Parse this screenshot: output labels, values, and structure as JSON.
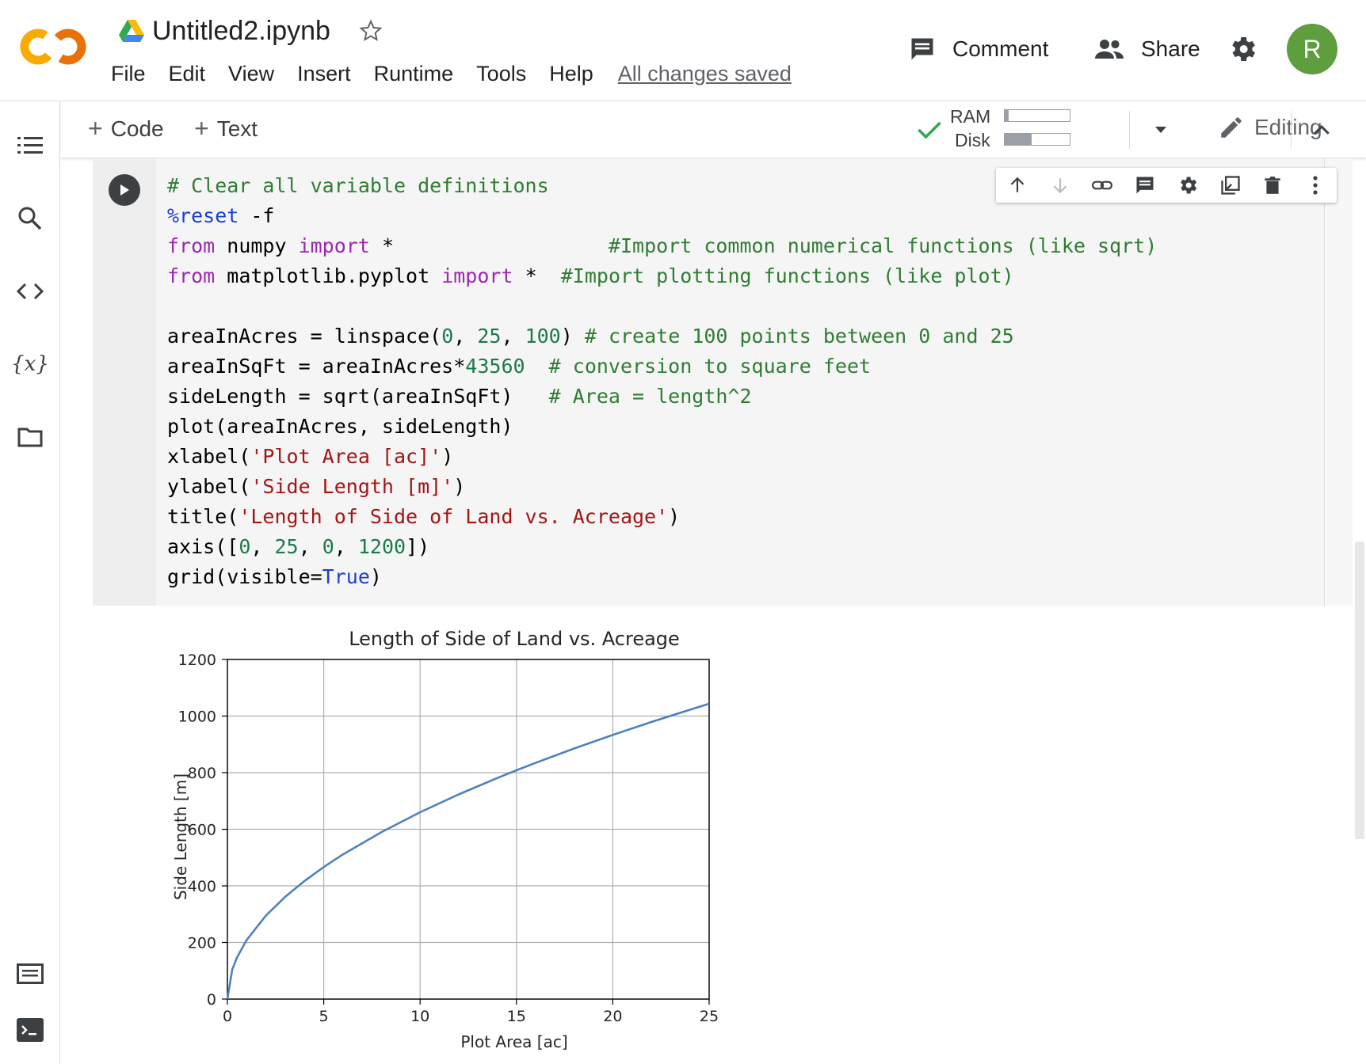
{
  "header": {
    "notebook_title": "Untitled2.ipynb",
    "menu": [
      "File",
      "Edit",
      "View",
      "Insert",
      "Runtime",
      "Tools",
      "Help"
    ],
    "save_status": "All changes saved",
    "comment_label": "Comment",
    "share_label": "Share",
    "avatar_initial": "R",
    "avatar_color": "#5e9e3e"
  },
  "left_rail": {
    "icons": [
      "table-of-contents-icon",
      "search-icon",
      "code-snippets-icon",
      "variables-icon",
      "files-icon",
      "command-palette-icon",
      "terminal-icon"
    ],
    "variables_glyph": "{x}"
  },
  "toolbar": {
    "add_code_label": "Code",
    "add_text_label": "Text",
    "ram_label": "RAM",
    "disk_label": "Disk",
    "ram_usage": 0.06,
    "disk_usage": 0.42,
    "editing_label": "Editing"
  },
  "cell": {
    "code_lines": [
      [
        {
          "t": "# Clear all variable definitions",
          "c": "cm"
        }
      ],
      [
        {
          "t": "%reset",
          "c": "mag"
        },
        {
          "t": " -f",
          "c": ""
        }
      ],
      [
        {
          "t": "from",
          "c": "kw"
        },
        {
          "t": " numpy ",
          "c": ""
        },
        {
          "t": "import",
          "c": "kw"
        },
        {
          "t": " *                  ",
          "c": ""
        },
        {
          "t": "#Import common numerical functions (like sqrt)",
          "c": "cm"
        }
      ],
      [
        {
          "t": "from",
          "c": "kw"
        },
        {
          "t": " matplotlib.pyplot ",
          "c": ""
        },
        {
          "t": "import",
          "c": "kw"
        },
        {
          "t": " *  ",
          "c": ""
        },
        {
          "t": "#Import plotting functions (like plot)",
          "c": "cm"
        }
      ],
      [
        {
          "t": "",
          "c": ""
        }
      ],
      [
        {
          "t": "areaInAcres = linspace(",
          "c": ""
        },
        {
          "t": "0",
          "c": "num"
        },
        {
          "t": ", ",
          "c": ""
        },
        {
          "t": "25",
          "c": "num"
        },
        {
          "t": ", ",
          "c": ""
        },
        {
          "t": "100",
          "c": "num"
        },
        {
          "t": ") ",
          "c": ""
        },
        {
          "t": "# create 100 points between 0 and 25",
          "c": "cm"
        }
      ],
      [
        {
          "t": "areaInSqFt = areaInAcres*",
          "c": ""
        },
        {
          "t": "43560",
          "c": "num"
        },
        {
          "t": "  ",
          "c": ""
        },
        {
          "t": "# conversion to square feet",
          "c": "cm"
        }
      ],
      [
        {
          "t": "sideLength = sqrt(areaInSqFt)   ",
          "c": ""
        },
        {
          "t": "# Area = length^2",
          "c": "cm"
        }
      ],
      [
        {
          "t": "plot(areaInAcres, sideLength)",
          "c": ""
        }
      ],
      [
        {
          "t": "xlabel(",
          "c": ""
        },
        {
          "t": "'Plot Area [ac]'",
          "c": "str"
        },
        {
          "t": ")",
          "c": ""
        }
      ],
      [
        {
          "t": "ylabel(",
          "c": ""
        },
        {
          "t": "'Side Length [m]'",
          "c": "str"
        },
        {
          "t": ")",
          "c": ""
        }
      ],
      [
        {
          "t": "title(",
          "c": ""
        },
        {
          "t": "'Length of Side of Land vs. Acreage'",
          "c": "str"
        },
        {
          "t": ")",
          "c": ""
        }
      ],
      [
        {
          "t": "axis([",
          "c": ""
        },
        {
          "t": "0",
          "c": "num"
        },
        {
          "t": ", ",
          "c": ""
        },
        {
          "t": "25",
          "c": "num"
        },
        {
          "t": ", ",
          "c": ""
        },
        {
          "t": "0",
          "c": "num"
        },
        {
          "t": ", ",
          "c": ""
        },
        {
          "t": "1200",
          "c": "num"
        },
        {
          "t": "])",
          "c": ""
        }
      ],
      [
        {
          "t": "grid(visible=",
          "c": ""
        },
        {
          "t": "True",
          "c": "bool"
        },
        {
          "t": ")",
          "c": ""
        }
      ]
    ],
    "cell_toolbar_icons": [
      "move-up-icon",
      "move-down-icon",
      "link-icon",
      "comment-icon",
      "settings-icon",
      "mirror-cell-icon",
      "delete-icon",
      "more-icon"
    ]
  },
  "chart_data": {
    "type": "line",
    "title": "Length of Side of Land vs. Acreage",
    "xlabel": "Plot Area [ac]",
    "ylabel": "Side Length [m]",
    "xlim": [
      0,
      25
    ],
    "ylim": [
      0,
      1200
    ],
    "xticks": [
      0,
      5,
      10,
      15,
      20,
      25
    ],
    "yticks": [
      0,
      200,
      400,
      600,
      800,
      1000,
      1200
    ],
    "grid": true,
    "line_color": "#4f81bd",
    "series": [
      {
        "x": [
          0,
          0.25,
          0.5,
          1,
          2,
          3,
          4,
          5,
          6,
          8,
          10,
          12,
          14,
          15,
          16,
          18,
          20,
          22,
          24,
          25
        ],
        "y": [
          0,
          104.4,
          147.6,
          208.7,
          295.2,
          361.5,
          417.4,
          466.7,
          511.2,
          590.3,
          660.0,
          723.0,
          780.9,
          808.3,
          834.8,
          885.5,
          933.4,
          978.9,
          1022.5,
          1043.6
        ]
      }
    ]
  }
}
